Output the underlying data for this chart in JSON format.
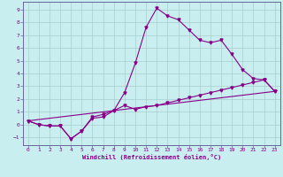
{
  "xlabel": "Windchill (Refroidissement éolien,°C)",
  "background_color": "#c8eef0",
  "grid_color": "#aacccc",
  "line_color": "#880088",
  "spine_color": "#666699",
  "x_ticks": [
    0,
    1,
    2,
    3,
    4,
    5,
    6,
    7,
    8,
    9,
    10,
    11,
    12,
    13,
    14,
    15,
    16,
    17,
    18,
    19,
    20,
    21,
    22,
    23
  ],
  "y_ticks": [
    -1,
    0,
    1,
    2,
    3,
    4,
    5,
    6,
    7,
    8,
    9
  ],
  "xlim": [
    -0.5,
    23.5
  ],
  "ylim": [
    -1.6,
    9.6
  ],
  "line1_x": [
    0,
    1,
    2,
    3,
    4,
    5,
    6,
    7,
    8,
    9,
    10,
    11,
    12,
    13,
    14,
    15,
    16,
    17,
    18,
    19,
    20,
    21,
    22,
    23
  ],
  "line1_y": [
    0.3,
    0.0,
    -0.1,
    -0.1,
    -1.1,
    -0.5,
    0.5,
    0.6,
    1.1,
    2.5,
    4.8,
    7.6,
    9.1,
    8.5,
    8.2,
    7.4,
    6.6,
    6.4,
    6.6,
    5.5,
    4.3,
    3.6,
    3.5,
    2.6
  ],
  "line2_x": [
    0,
    1,
    2,
    3,
    4,
    5,
    6,
    7,
    8,
    9,
    10,
    11,
    12,
    13,
    14,
    15,
    16,
    17,
    18,
    19,
    20,
    21,
    22,
    23
  ],
  "line2_y": [
    0.3,
    0.0,
    -0.1,
    -0.1,
    -1.1,
    -0.5,
    0.6,
    0.8,
    1.1,
    1.5,
    1.2,
    1.4,
    1.5,
    1.7,
    1.9,
    2.1,
    2.3,
    2.5,
    2.7,
    2.9,
    3.1,
    3.3,
    3.5,
    2.6
  ],
  "line3_x": [
    0,
    23
  ],
  "line3_y": [
    0.3,
    2.6
  ]
}
